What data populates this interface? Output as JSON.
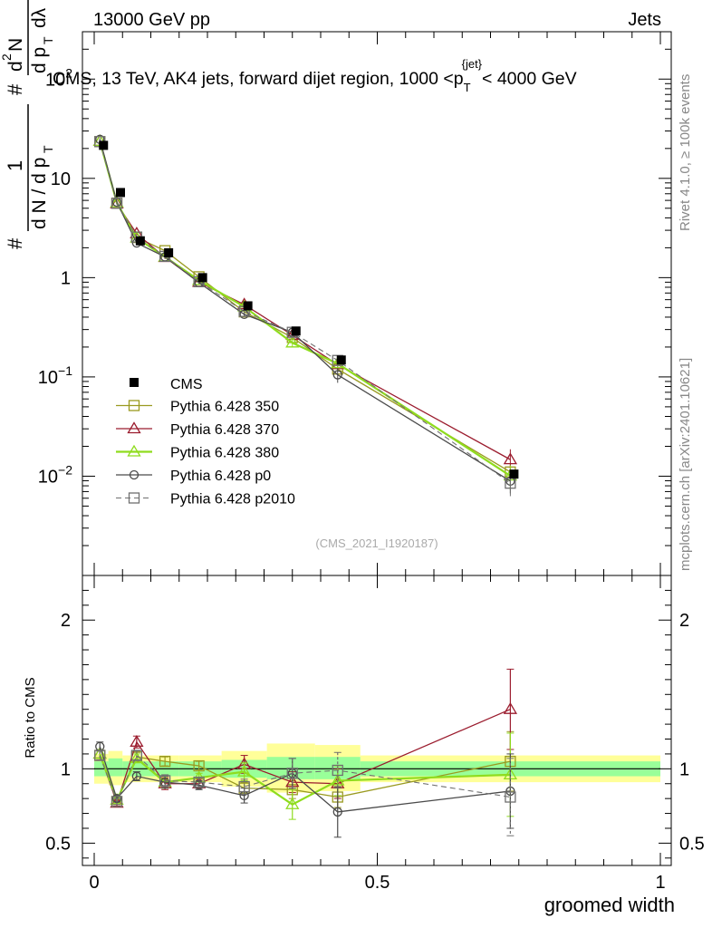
{
  "header": {
    "left_title": "13000 GeV pp",
    "right_title": "Jets"
  },
  "side_labels": {
    "rivet": "Rivet 4.1.0, ≥ 100k events",
    "mcplots": "mcplots.cern.ch [arXiv:2401.10621]"
  },
  "chart_data": {
    "type": "line",
    "title": "CMS, 13 TeV, AK4 jets, forward dijet region, 1000 <p_T^{jet}< 4000 GeV",
    "title_parts": {
      "main": "CMS, 13 TeV, AK4 jets, forward dijet region, 1000 <p",
      "sub": "T",
      "sup": "{jet}",
      "tail": "< 4000 GeV"
    },
    "ylabel": "1/N dN/dpT  d²N/dpT dλ",
    "ylabel_parts": {
      "one": "1",
      "frac_left": "d N / d p",
      "t": "T",
      "num_right": "d",
      "sup2": "2",
      "n_right": "N",
      "den_right": "d p",
      "lambda": "dλ",
      "hash": "#"
    },
    "xlabel": "groomed width",
    "ratio_ylabel": "Ratio to CMS",
    "watermark": "(CMS_2021_I1920187)",
    "xlim": [
      -0.04,
      1.0
    ],
    "ylim": [
      0.001,
      300
    ],
    "ratio_ylim": [
      0.35,
      2.3
    ],
    "x_ticks": [
      {
        "v": 0,
        "label": "0"
      },
      {
        "v": 0.5,
        "label": "0.5"
      },
      {
        "v": 1,
        "label": "1"
      }
    ],
    "y_ticks": [
      {
        "v": 100,
        "base": "10",
        "exp": "2"
      },
      {
        "v": 10,
        "base": "10",
        "exp": ""
      },
      {
        "v": 1,
        "base": "1",
        "exp": ""
      },
      {
        "v": 0.1,
        "base": "10",
        "exp": "−1"
      },
      {
        "v": 0.01,
        "base": "10",
        "exp": "−2"
      }
    ],
    "ratio_ticks": [
      {
        "v": 0.5,
        "label": "0.5"
      },
      {
        "v": 1,
        "label": "1"
      },
      {
        "v": 2,
        "label": "2"
      }
    ],
    "x": [
      0.01,
      0.04,
      0.075,
      0.125,
      0.185,
      0.265,
      0.35,
      0.43,
      0.735
    ],
    "cms": [
      21.5,
      7.2,
      2.35,
      1.78,
      1.0,
      0.52,
      0.29,
      0.148,
      0.0105
    ],
    "bands": [
      {
        "x0": 0.0,
        "x1": 0.025,
        "g": [
          0.95,
          1.05
        ],
        "y": [
          0.9,
          1.1
        ]
      },
      {
        "x0": 0.025,
        "x1": 0.05,
        "g": [
          0.95,
          1.07
        ],
        "y": [
          0.89,
          1.12
        ]
      },
      {
        "x0": 0.05,
        "x1": 0.1,
        "g": [
          0.95,
          1.05
        ],
        "y": [
          0.91,
          1.09
        ]
      },
      {
        "x0": 0.1,
        "x1": 0.15,
        "g": [
          0.95,
          1.05
        ],
        "y": [
          0.91,
          1.09
        ]
      },
      {
        "x0": 0.15,
        "x1": 0.225,
        "g": [
          0.95,
          1.05
        ],
        "y": [
          0.91,
          1.09
        ]
      },
      {
        "x0": 0.225,
        "x1": 0.305,
        "g": [
          0.94,
          1.06
        ],
        "y": [
          0.88,
          1.12
        ]
      },
      {
        "x0": 0.305,
        "x1": 0.39,
        "g": [
          0.93,
          1.08
        ],
        "y": [
          0.84,
          1.17
        ]
      },
      {
        "x0": 0.39,
        "x1": 0.47,
        "g": [
          0.93,
          1.08
        ],
        "y": [
          0.85,
          1.16
        ]
      },
      {
        "x0": 0.47,
        "x1": 1.0,
        "g": [
          0.95,
          1.05
        ],
        "y": [
          0.91,
          1.09
        ]
      }
    ],
    "series": [
      {
        "name": "Pythia 6.428 350",
        "color": "#9a9a20",
        "marker": "square",
        "dash": false,
        "width": 1.3,
        "ratio": [
          1.09,
          0.78,
          1.08,
          1.05,
          1.02,
          0.87,
          0.86,
          0.81,
          1.05
        ],
        "err": [
          0.03,
          0.02,
          0.03,
          0.03,
          0.03,
          0.04,
          0.06,
          0.07,
          0.2
        ]
      },
      {
        "name": "Pythia 6.428 370",
        "color": "#9b1c2e",
        "marker": "triangle",
        "dash": false,
        "width": 1.3,
        "ratio": [
          1.1,
          0.77,
          1.18,
          0.9,
          0.9,
          1.03,
          0.91,
          0.9,
          1.4
        ],
        "err": [
          0.03,
          0.02,
          0.04,
          0.04,
          0.03,
          0.06,
          0.07,
          0.1,
          0.27
        ]
      },
      {
        "name": "Pythia 6.428 380",
        "color": "#8fdc1e",
        "marker": "triangle",
        "dash": false,
        "width": 2.2,
        "ratio": [
          1.1,
          0.79,
          1.07,
          0.91,
          0.94,
          0.98,
          0.76,
          0.92,
          0.96
        ],
        "err": [
          0.03,
          0.02,
          0.03,
          0.04,
          0.03,
          0.06,
          0.1,
          0.1,
          0.28
        ]
      },
      {
        "name": "Pythia 6.428 p0",
        "color": "#4a4a4a",
        "marker": "circle",
        "dash": false,
        "width": 1.3,
        "ratio": [
          1.15,
          0.8,
          0.95,
          0.91,
          0.89,
          0.82,
          0.97,
          0.71,
          0.85
        ],
        "err": [
          0.03,
          0.02,
          0.03,
          0.04,
          0.03,
          0.05,
          0.1,
          0.17,
          0.25
        ]
      },
      {
        "name": "Pythia 6.428 p2010",
        "color": "#707070",
        "marker": "square",
        "dash": true,
        "width": 1.1,
        "ratio": [
          1.09,
          0.78,
          1.09,
          0.92,
          0.91,
          0.88,
          0.97,
          0.99,
          0.81
        ],
        "err": [
          0.03,
          0.02,
          0.03,
          0.04,
          0.03,
          0.05,
          0.1,
          0.12,
          0.26
        ]
      }
    ],
    "legend": {
      "position": "left-middle",
      "data_label": "CMS"
    }
  }
}
